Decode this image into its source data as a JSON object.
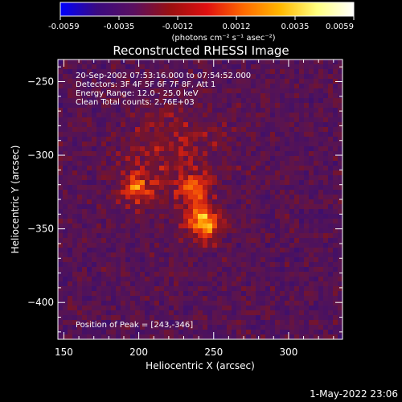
{
  "colorbar": {
    "ticks": [
      "-0.0059",
      "-0.0035",
      "-0.0012",
      "0.0012",
      "0.0035",
      "0.0059"
    ],
    "unit_label": "(photons cm⁻² s⁻¹ asec⁻²)",
    "range": [
      -0.0059,
      0.0059
    ],
    "colors": [
      "#0000ff",
      "#3a0a80",
      "#5a1060",
      "#9a1010",
      "#e01010",
      "#ff6a00",
      "#ffb800",
      "#ffff80",
      "#ffffff"
    ]
  },
  "chart_data": {
    "type": "heatmap",
    "title": "Reconstructed RHESSI Image",
    "xlabel": "Heliocentric X (arcsec)",
    "ylabel": "Heliocentric Y (arcsec)",
    "xlim": [
      146,
      336
    ],
    "ylim": [
      -425,
      -235
    ],
    "xticks": [
      150,
      200,
      250,
      300
    ],
    "yticks": [
      -250,
      -300,
      -350,
      -400
    ],
    "xtick_labels": [
      "150",
      "200",
      "250",
      "300"
    ],
    "ytick_labels": [
      "−250",
      "−300",
      "−350",
      "−400"
    ],
    "info_lines": [
      "20-Sep-2002 07:53:16.000 to 07:54:52.000",
      "Detectors: 3F 4F 5F 6F 7F 8F, Att 1",
      "Energy Range: 12.0 - 25.0 keV",
      "Clean     Total counts: 2.76E+03"
    ],
    "peak_label": "Position of Peak = [243,-346]",
    "peak": [
      243,
      -346
    ],
    "sources": [
      {
        "x": 243,
        "y": -346,
        "amp": 0.0059,
        "sigma": 8
      },
      {
        "x": 198,
        "y": -323,
        "amp": 0.0036,
        "sigma": 7
      },
      {
        "x": 237,
        "y": -323,
        "amp": 0.0034,
        "sigma": 7
      },
      {
        "x": 222,
        "y": -300,
        "amp": 0.0018,
        "sigma": 26
      }
    ]
  },
  "footer": {
    "date": "1-May-2022 23:06"
  }
}
